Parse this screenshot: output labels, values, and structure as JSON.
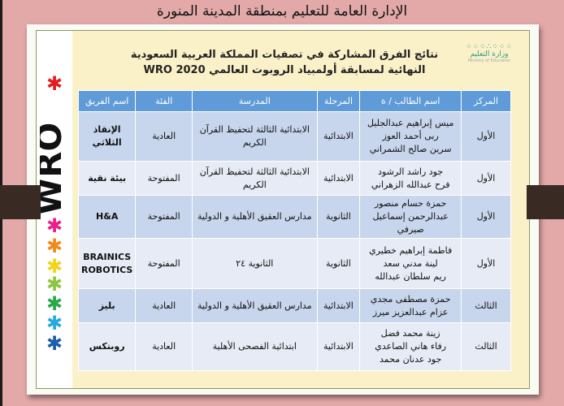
{
  "page_title": "الإدارة العامة للتعليم بمنطقة المدينة المنورة",
  "logo": {
    "wro_text": "WRO",
    "ministry_ar": "وزارة التعليم",
    "ministry_en": "Ministry of Education"
  },
  "heading": {
    "line1": "نتائج الفرق المشاركة في تصفيات المملكة العربية السعودية",
    "line2": "النهائية لمسابقة أولمبياد الروبوت العالمي  WRO 2020"
  },
  "colors": {
    "header": "#5f9bd9",
    "row_odd": "#c7d6ec",
    "row_even": "#e6ebf5",
    "background": "#e2a9a8"
  },
  "table": {
    "headers": [
      "المركز",
      "اسم الطالب / ة",
      "المرحلة",
      "المدرسة",
      "الفئة",
      "اسم الفريق"
    ],
    "rows": [
      {
        "rank": "الأول",
        "students": [
          "ميس إبراهيم عبدالجليل",
          "ربى أحمد العوز",
          "سرين صالح الشمراني"
        ],
        "stage": "الابتدائية",
        "school": "الابتدائية الثالثة لتحفيظ القرآن الكريم",
        "category": "العادية",
        "team": "الإنقاذ الثلاثي"
      },
      {
        "rank": "الأول",
        "students": [
          "جود راشد الرشود",
          "فرح عبدالله الزهراني"
        ],
        "stage": "الابتدائية",
        "school": "الابتدائية الثالثة لتحفيظ القرآن الكريم",
        "category": "المفتوحة",
        "team": "بيئة نقية"
      },
      {
        "rank": "الأول",
        "students": [
          "حمزة حسام منصور",
          "عبدالرحمن إسماعيل صيرفي"
        ],
        "stage": "الثانوية",
        "school": "مدارس العقيق الأهلية و الدولية",
        "category": "المفتوحة",
        "team": "H&A"
      },
      {
        "rank": "الأول",
        "students": [
          "فاطمة إبراهيم خطيري",
          "لينة مدني سعد",
          "ريم سلطان عبدالله"
        ],
        "stage": "الثانوية",
        "school": "الثانوية ٢٤",
        "category": "المفتوحة",
        "team": "BRAINICS ROBOTICS"
      },
      {
        "rank": "الثالث",
        "students": [
          "حمزة مصطفى مجدي",
          "عزام عبدالعزيز ميرز"
        ],
        "stage": "الابتدائية",
        "school": "مدارس العقيق الأهلية و الدولية",
        "category": "العادية",
        "team": "بليز"
      },
      {
        "rank": "الثالث",
        "students": [
          "زينة محمد فضل",
          "رفاء هاني الصاعدي",
          "جود عدنان محمد"
        ],
        "stage": "الابتدائية",
        "school": "ابتدائية الفصحى الأهلية",
        "category": "العادية",
        "team": "روبتكس"
      }
    ]
  }
}
